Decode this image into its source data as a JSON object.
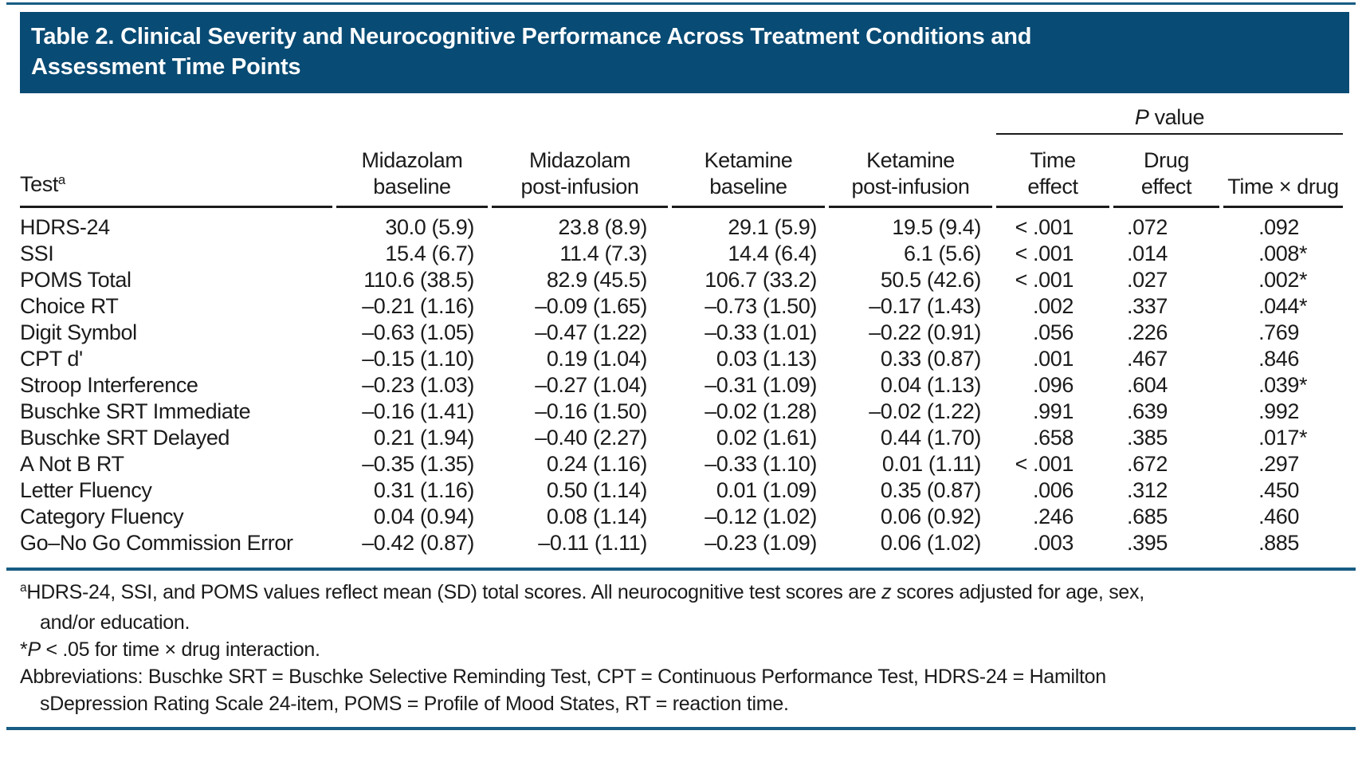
{
  "title": {
    "line1": "Table 2. Clinical Severity and Neurocognitive Performance Across Treatment Conditions and",
    "line2": "Assessment Time Points"
  },
  "colors": {
    "title_bar_bg": "#084b74",
    "title_text": "#ffffff",
    "rule_blue": "#175c84",
    "header_rule_black": "#1b1b1b",
    "body_text": "#1b1b1b"
  },
  "table": {
    "header": {
      "test_label": "Test",
      "test_sup": "a",
      "p_group": {
        "p": "P",
        "rest": " value"
      },
      "columns": [
        {
          "line1": "Midazolam",
          "line2": "baseline"
        },
        {
          "line1": "Midazolam",
          "line2": "post-infusion"
        },
        {
          "line1": "Ketamine",
          "line2": "baseline"
        },
        {
          "line1": "Ketamine",
          "line2": "post-infusion"
        },
        {
          "line1": "Time",
          "line2": "effect"
        },
        {
          "line1": "Drug",
          "line2": "effect"
        },
        {
          "line1": "",
          "line2": "Time × drug"
        }
      ]
    },
    "rows": [
      {
        "test": "HDRS-24",
        "midazolam_baseline": "30.0 (5.9)",
        "midazolam_post_infusion": "23.8 (8.9)",
        "ketamine_baseline": "29.1 (5.9)",
        "ketamine_post_infusion": "19.5 (9.4)",
        "time_effect": "< .001",
        "drug_effect": ".072",
        "time_x_drug": ".092"
      },
      {
        "test": "SSI",
        "midazolam_baseline": "15.4 (6.7)",
        "midazolam_post_infusion": "11.4 (7.3)",
        "ketamine_baseline": "14.4 (6.4)",
        "ketamine_post_infusion": "6.1 (5.6)",
        "time_effect": "< .001",
        "drug_effect": ".014",
        "time_x_drug": ".008*"
      },
      {
        "test": "POMS Total",
        "midazolam_baseline": "110.6 (38.5)",
        "midazolam_post_infusion": "82.9 (45.5)",
        "ketamine_baseline": "106.7 (33.2)",
        "ketamine_post_infusion": "50.5 (42.6)",
        "time_effect": "< .001",
        "drug_effect": ".027",
        "time_x_drug": ".002*"
      },
      {
        "test": "Choice RT",
        "midazolam_baseline": "–0.21 (1.16)",
        "midazolam_post_infusion": "–0.09 (1.65)",
        "ketamine_baseline": "–0.73 (1.50)",
        "ketamine_post_infusion": "–0.17 (1.43)",
        "time_effect": ".002",
        "drug_effect": ".337",
        "time_x_drug": ".044*"
      },
      {
        "test": "Digit Symbol",
        "midazolam_baseline": "–0.63 (1.05)",
        "midazolam_post_infusion": "–0.47 (1.22)",
        "ketamine_baseline": "–0.33 (1.01)",
        "ketamine_post_infusion": "–0.22 (0.91)",
        "time_effect": ".056",
        "drug_effect": ".226",
        "time_x_drug": ".769"
      },
      {
        "test": "CPT d'",
        "midazolam_baseline": "–0.15 (1.10)",
        "midazolam_post_infusion": "0.19 (1.04)",
        "ketamine_baseline": "0.03 (1.13)",
        "ketamine_post_infusion": "0.33 (0.87)",
        "time_effect": ".001",
        "drug_effect": ".467",
        "time_x_drug": ".846"
      },
      {
        "test": "Stroop Interference",
        "midazolam_baseline": "–0.23 (1.03)",
        "midazolam_post_infusion": "–0.27 (1.04)",
        "ketamine_baseline": "–0.31 (1.09)",
        "ketamine_post_infusion": "0.04 (1.13)",
        "time_effect": ".096",
        "drug_effect": ".604",
        "time_x_drug": ".039*"
      },
      {
        "test": "Buschke SRT Immediate",
        "midazolam_baseline": "–0.16 (1.41)",
        "midazolam_post_infusion": "–0.16 (1.50)",
        "ketamine_baseline": "–0.02 (1.28)",
        "ketamine_post_infusion": "–0.02 (1.22)",
        "time_effect": ".991",
        "drug_effect": ".639",
        "time_x_drug": ".992"
      },
      {
        "test": "Buschke SRT Delayed",
        "midazolam_baseline": "0.21 (1.94)",
        "midazolam_post_infusion": "–0.40 (2.27)",
        "ketamine_baseline": "0.02 (1.61)",
        "ketamine_post_infusion": "0.44 (1.70)",
        "time_effect": ".658",
        "drug_effect": ".385",
        "time_x_drug": ".017*"
      },
      {
        "test": "A Not B RT",
        "midazolam_baseline": "–0.35 (1.35)",
        "midazolam_post_infusion": "0.24 (1.16)",
        "ketamine_baseline": "–0.33 (1.10)",
        "ketamine_post_infusion": "0.01 (1.11)",
        "time_effect": "< .001",
        "drug_effect": ".672",
        "time_x_drug": ".297"
      },
      {
        "test": "Letter Fluency",
        "midazolam_baseline": "0.31 (1.16)",
        "midazolam_post_infusion": "0.50 (1.14)",
        "ketamine_baseline": "0.01 (1.09)",
        "ketamine_post_infusion": "0.35 (0.87)",
        "time_effect": ".006",
        "drug_effect": ".312",
        "time_x_drug": ".450"
      },
      {
        "test": "Category Fluency",
        "midazolam_baseline": "0.04 (0.94)",
        "midazolam_post_infusion": "0.08 (1.14)",
        "ketamine_baseline": "–0.12 (1.02)",
        "ketamine_post_infusion": "0.06 (0.92)",
        "time_effect": ".246",
        "drug_effect": ".685",
        "time_x_drug": ".460"
      },
      {
        "test": "Go–No Go Commission Error",
        "midazolam_baseline": "–0.42 (0.87)",
        "midazolam_post_infusion": "–0.11 (1.11)",
        "ketamine_baseline": "–0.23 (1.09)",
        "ketamine_post_infusion": "0.06 (1.02)",
        "time_effect": ".003",
        "drug_effect": ".395",
        "time_x_drug": ".885"
      }
    ]
  },
  "footnotes": {
    "a": {
      "sup": "a",
      "line1": {
        "before_z": "HDRS-24, SSI, and POMS values reflect mean (SD) total scores. All neurocognitive test scores are ",
        "z": "z",
        "after_z": " scores adjusted for age, sex,"
      },
      "line2": "and/or education."
    },
    "star": {
      "symbol": "*",
      "p": "P",
      "rest": " < .05 for time × drug interaction."
    },
    "abbreviations": {
      "line1": "Abbreviations: Buschke SRT = Buschke Selective Reminding Test, CPT = Continuous Performance Test, HDRS-24 = Hamilton",
      "line2": "sDepression Rating Scale 24-item, POMS = Profile of Mood States, RT = reaction time."
    }
  }
}
